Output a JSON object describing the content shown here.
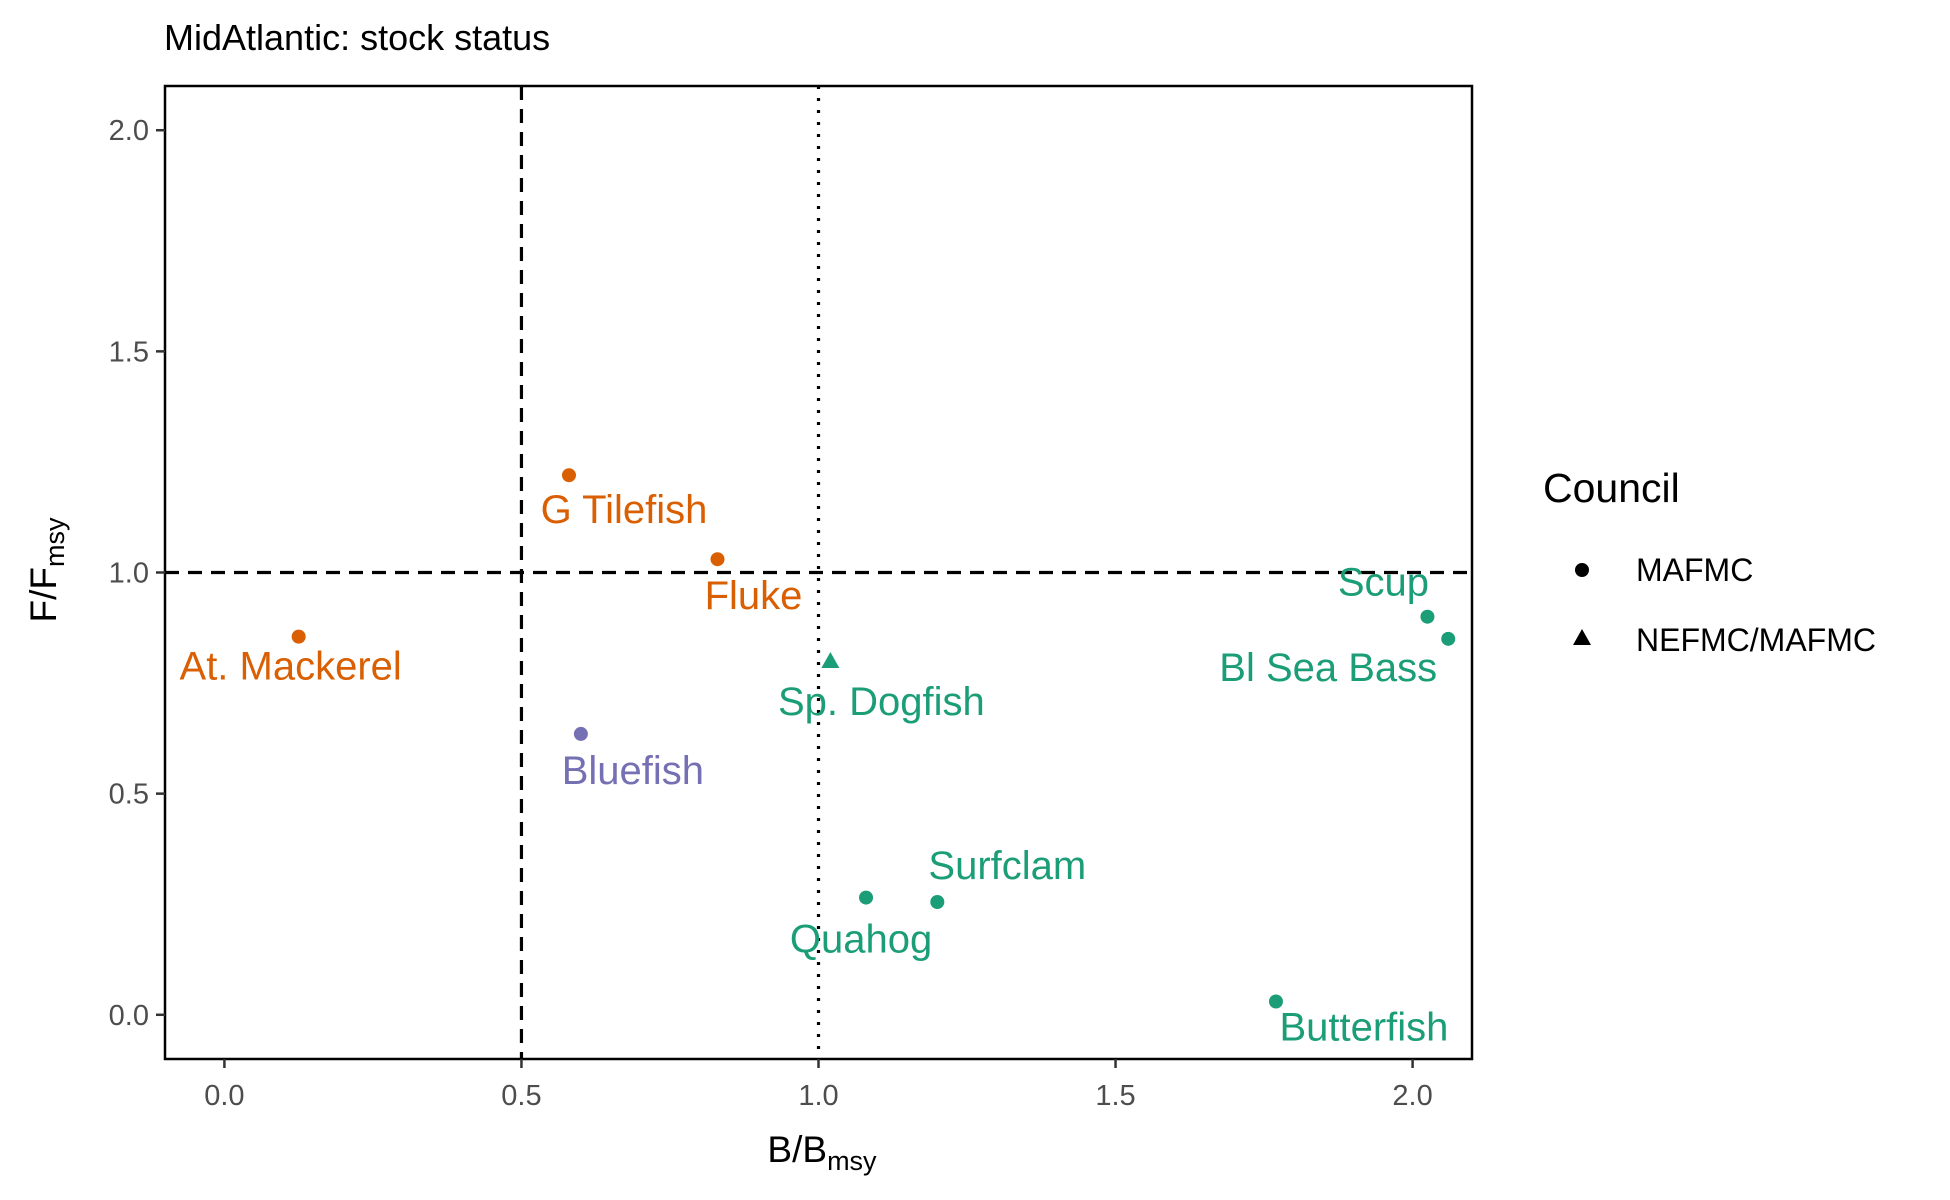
{
  "chart_data": {
    "type": "scatter",
    "title": "MidAtlantic: stock status",
    "xlabel": {
      "main": "B/B",
      "sub": "msy"
    },
    "ylabel": {
      "main": "F/F",
      "sub": "msy"
    },
    "xlim": [
      -0.1,
      2.1
    ],
    "ylim": [
      -0.1,
      2.1
    ],
    "xticks": [
      0.0,
      0.5,
      1.0,
      1.5,
      2.0
    ],
    "yticks": [
      0.0,
      0.5,
      1.0,
      1.5,
      2.0
    ],
    "xtick_labels": [
      "0.0",
      "0.5",
      "1.0",
      "1.5",
      "2.0"
    ],
    "ytick_labels": [
      "0.0",
      "0.5",
      "1.0",
      "1.5",
      "2.0"
    ],
    "grid": false,
    "reference_lines": [
      {
        "axis": "x",
        "value": 0.5,
        "style": "dashed"
      },
      {
        "axis": "x",
        "value": 1.0,
        "style": "dotted"
      },
      {
        "axis": "y",
        "value": 1.0,
        "style": "dashed"
      }
    ],
    "legend": {
      "title": "Council",
      "position": "right",
      "entries": [
        {
          "label": "MAFMC",
          "shape": "circle"
        },
        {
          "label": "NEFMC/MAFMC",
          "shape": "triangle"
        }
      ]
    },
    "colors": {
      "orange": "#d95f02",
      "green": "#1b9e77",
      "purple": "#7570b3"
    },
    "points": [
      {
        "label": "At. Mackerel",
        "x": 0.125,
        "y": 0.855,
        "shape": "circle",
        "color": "orange"
      },
      {
        "label": "G Tilefish",
        "x": 0.58,
        "y": 1.22,
        "shape": "circle",
        "color": "orange"
      },
      {
        "label": "Fluke",
        "x": 0.83,
        "y": 1.03,
        "shape": "circle",
        "color": "orange"
      },
      {
        "label": "Bluefish",
        "x": 0.6,
        "y": 0.635,
        "shape": "circle",
        "color": "purple"
      },
      {
        "label": "Sp. Dogfish",
        "x": 1.02,
        "y": 0.8,
        "shape": "triangle",
        "color": "green"
      },
      {
        "label": "Surfclam",
        "x": 1.2,
        "y": 0.255,
        "shape": "circle",
        "color": "green"
      },
      {
        "label": "Quahog",
        "x": 1.08,
        "y": 0.265,
        "shape": "circle",
        "color": "green"
      },
      {
        "label": "Butterfish",
        "x": 1.77,
        "y": 0.03,
        "shape": "circle",
        "color": "green"
      },
      {
        "label": "Scup",
        "x": 2.025,
        "y": 0.9,
        "shape": "circle",
        "color": "green"
      },
      {
        "label": "Bl Sea Bass",
        "x": 2.06,
        "y": 0.85,
        "shape": "circle",
        "color": "green"
      }
    ]
  }
}
